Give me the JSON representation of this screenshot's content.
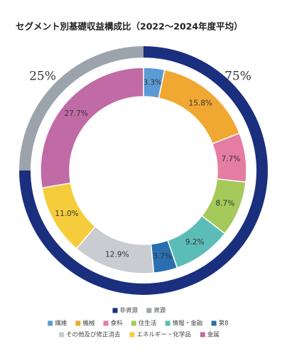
{
  "chart_data": {
    "type": "donut",
    "title": "セグメント別基礎収益構成比（2022〜2024年度平均）",
    "rings": [
      {
        "categories": [
          "非資源",
          "資源"
        ],
        "values": [
          75,
          25
        ],
        "value_labels": [
          "75%",
          "25%"
        ],
        "colors": [
          "#1b2f7f",
          "#9ba4ac"
        ]
      },
      {
        "categories": [
          "繊維",
          "機械",
          "食料",
          "住生活",
          "情報・金融",
          "第8",
          "その他及び修正消去",
          "エネルギー・化学品",
          "金属"
        ],
        "values": [
          3.3,
          15.8,
          7.7,
          8.7,
          9.2,
          3.7,
          12.9,
          11.0,
          27.7
        ],
        "value_labels": [
          "3.3%",
          "15.8%",
          "7.7%",
          "8.7%",
          "9.2%",
          "3.7%",
          "12.9%",
          "11.0%",
          "27.7%"
        ],
        "colors": [
          "#5b9bd5",
          "#f0a832",
          "#e57da2",
          "#a5c95a",
          "#5cbdb8",
          "#2a6fb0",
          "#c9ccd0",
          "#f5cd3c",
          "#c06aa6"
        ]
      }
    ]
  }
}
